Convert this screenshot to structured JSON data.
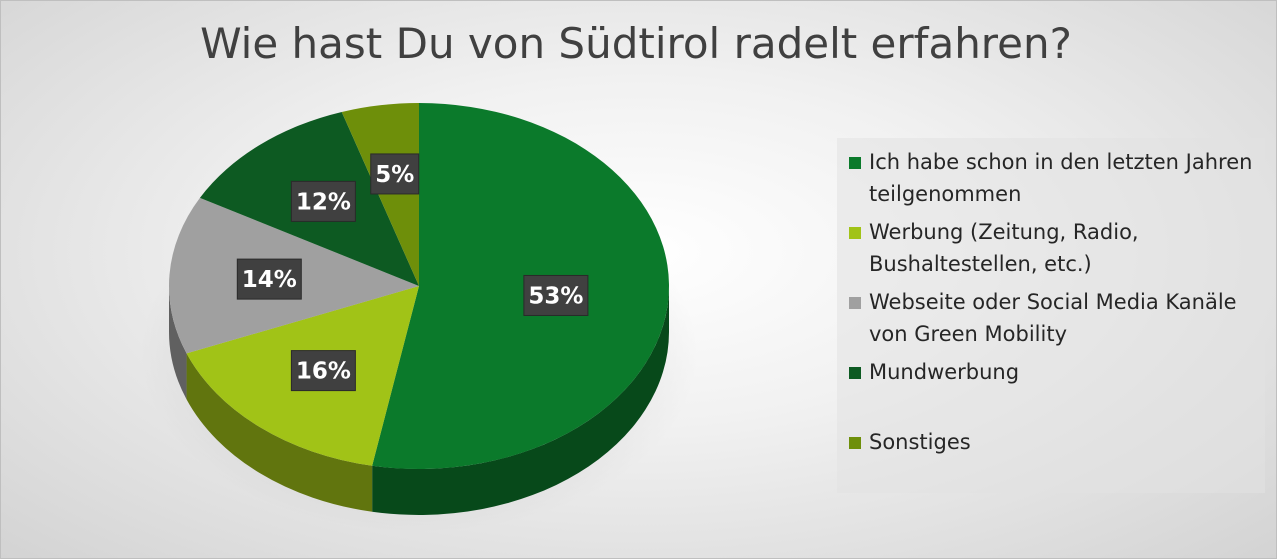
{
  "chart_data": {
    "type": "pie",
    "title": "Wie hast Du von Südtirol radelt erfahren?",
    "categories": [
      "Ich habe schon in den letzten Jahren teilgenommen",
      "Werbung (Zeitung, Radio, Bushaltestellen, etc.)",
      "Webseite oder Social Media Kanäle von Green Mobility",
      "Mundwerbung",
      "Sonstiges"
    ],
    "values": [
      53,
      16,
      14,
      12,
      5
    ],
    "data_labels": [
      "53%",
      "16%",
      "14%",
      "12%",
      "5%"
    ],
    "colors": [
      "#0b7a2b",
      "#a1c317",
      "#a0a0a0",
      "#0d5a22",
      "#6e8f0a"
    ],
    "legend_position": "right"
  }
}
